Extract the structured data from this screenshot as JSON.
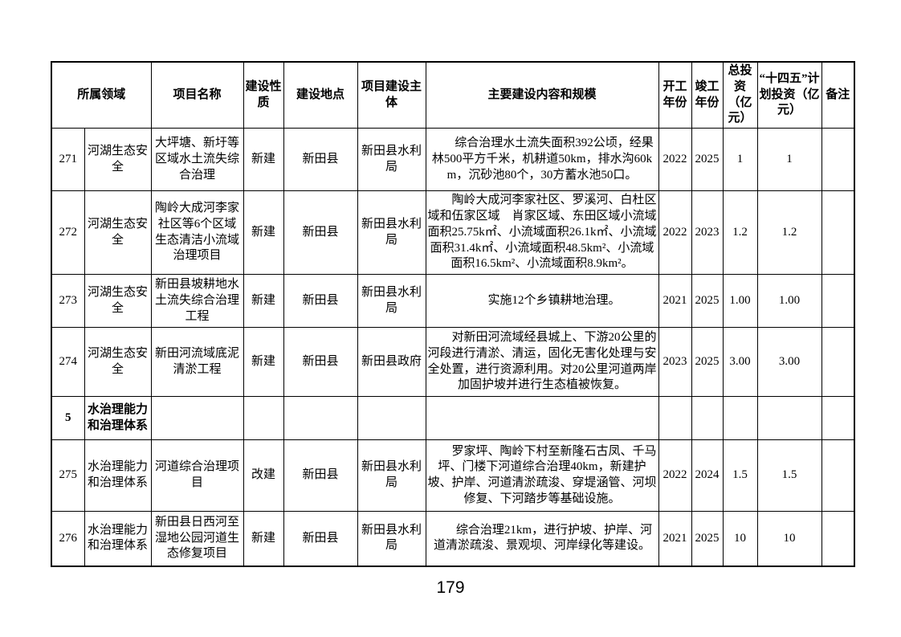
{
  "doc": {
    "page_number": "179"
  },
  "table": {
    "headers": {
      "field": "所属领域",
      "project_name": "项目名称",
      "nature": "建设性质",
      "location": "建设地点",
      "entity": "项目建设主体",
      "content": "主要建设内容和规模",
      "start_year": "开工年份",
      "end_year": "竣工年份",
      "total_investment": "总投资（亿元）",
      "plan_investment": "“十四五”计划投资（亿元）",
      "remark": "备注"
    },
    "rows": [
      {
        "no": "271",
        "field": "河湖生态安全",
        "name": "大坪塘、新圩等区域水土流失综合治理",
        "nature": "新建",
        "location": "新田县",
        "entity": "新田县水利局",
        "content": "综合治理水土流失面积392公顷，经果林500平方千米，机耕道50km，排水沟60km，沉砂池80个，30方蓄水池50口。",
        "start_year": "2022",
        "end_year": "2025",
        "total": "1",
        "plan": "1",
        "remark": "",
        "section": false
      },
      {
        "no": "272",
        "field": "河湖生态安全",
        "name": "陶岭大成河李家社区等6个区域生态清洁小流域治理项目",
        "nature": "新建",
        "location": "新田县",
        "entity": "新田县水利局",
        "content": "陶岭大成河李家社区、罗溪河、白杜区域和伍家区域　肖家区域、东田区域小流域面积25.75k㎡、小流域面积26.1k㎡、小流域面积31.4k㎡、小流域面积48.5km²、小流域面积16.5km²、小流域面积8.9km²。",
        "start_year": "2022",
        "end_year": "2023",
        "total": "1.2",
        "plan": "1.2",
        "remark": "",
        "section": false
      },
      {
        "no": "273",
        "field": "河湖生态安全",
        "name": "新田县坡耕地水土流失综合治理工程",
        "nature": "新建",
        "location": "新田县",
        "entity": "新田县水利局",
        "content": "实施12个乡镇耕地治理。",
        "start_year": "2021",
        "end_year": "2025",
        "total": "1.00",
        "plan": "1.00",
        "remark": "",
        "section": false
      },
      {
        "no": "274",
        "field": "河湖生态安全",
        "name": "新田河流域底泥清淤工程",
        "nature": "新建",
        "location": "新田县",
        "entity": "新田县政府",
        "content": "对新田河流域经县城上、下游20公里的河段进行清淤、清运，固化无害化处理与安全处置，进行资源利用。对20公里河道两岸加固护坡并进行生态植被恢复。",
        "start_year": "2023",
        "end_year": "2025",
        "total": "3.00",
        "plan": "3.00",
        "remark": "",
        "section": false
      },
      {
        "no": "5",
        "field": "水治理能力和治理体系",
        "name": "",
        "nature": "",
        "location": "",
        "entity": "",
        "content": "",
        "start_year": "",
        "end_year": "",
        "total": "",
        "plan": "",
        "remark": "",
        "section": true
      },
      {
        "no": "275",
        "field": "水治理能力和治理体系",
        "name": "河道综合治理项目",
        "nature": "改建",
        "location": "新田县",
        "entity": "新田县水利局",
        "content": "罗家坪、陶岭下村至新隆石古凤、千马坪、门楼下河道综合治理40km，新建护坡、护岸、河道清淤疏浚、穿堤涵管、河坝修复、下河踏步等基础设施。",
        "start_year": "2022",
        "end_year": "2024",
        "total": "1.5",
        "plan": "1.5",
        "remark": "",
        "section": false
      },
      {
        "no": "276",
        "field": "水治理能力和治理体系",
        "name": "新田县日西河至湿地公园河道生态修复项目",
        "nature": "新建",
        "location": "新田县",
        "entity": "新田县水利局",
        "content": "综合治理21km，进行护坡、护岸、河道清淤疏浚、景观坝、河岸绿化等建设。",
        "start_year": "2021",
        "end_year": "2025",
        "total": "10",
        "plan": "10",
        "remark": "",
        "section": false
      }
    ]
  }
}
